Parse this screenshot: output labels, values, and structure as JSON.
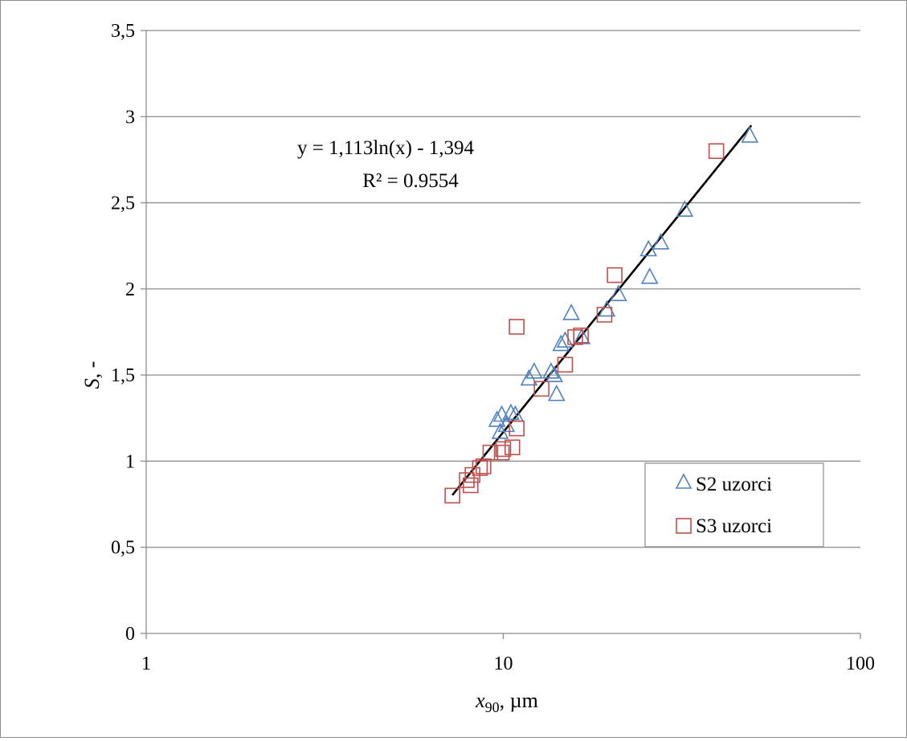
{
  "chart_data": {
    "type": "scatter",
    "title": "",
    "xlabel": {
      "main": "x",
      "sub": "90",
      "unit": ", µm"
    },
    "ylabel": {
      "main": "S",
      "unit": ", -"
    },
    "x_scale": "log",
    "xlim": [
      1,
      100
    ],
    "ylim": [
      0,
      3.5
    ],
    "x_ticks": [
      {
        "value": 1,
        "label": "1"
      },
      {
        "value": 10,
        "label": "10"
      },
      {
        "value": 100,
        "label": "100"
      }
    ],
    "y_ticks": [
      {
        "value": 0,
        "label": "0"
      },
      {
        "value": 0.5,
        "label": "0,5"
      },
      {
        "value": 1,
        "label": "1"
      },
      {
        "value": 1.5,
        "label": "1,5"
      },
      {
        "value": 2,
        "label": "2"
      },
      {
        "value": 2.5,
        "label": "2,5"
      },
      {
        "value": 3,
        "label": "3"
      },
      {
        "value": 3.5,
        "label": "3,5"
      }
    ],
    "grid": {
      "horizontal": true,
      "vertical": false
    },
    "legend_position": "right",
    "series": [
      {
        "name": "S2 uzorci",
        "marker": "triangle",
        "color": "#4f81bd",
        "points": [
          [
            9.6,
            1.24
          ],
          [
            9.9,
            1.27
          ],
          [
            9.8,
            1.17
          ],
          [
            10.2,
            1.21
          ],
          [
            10.5,
            1.28
          ],
          [
            10.8,
            1.27
          ],
          [
            11.8,
            1.48
          ],
          [
            12.2,
            1.52
          ],
          [
            13.6,
            1.52
          ],
          [
            13.9,
            1.5
          ],
          [
            14.1,
            1.39
          ],
          [
            14.5,
            1.68
          ],
          [
            14.9,
            1.7
          ],
          [
            15.5,
            1.86
          ],
          [
            16.6,
            1.72
          ],
          [
            19.5,
            1.88
          ],
          [
            21.0,
            1.97
          ],
          [
            25.5,
            2.23
          ],
          [
            25.7,
            2.07
          ],
          [
            27.6,
            2.27
          ],
          [
            32.2,
            2.46
          ],
          [
            49.0,
            2.89
          ]
        ]
      },
      {
        "name": "S3 uzorci",
        "marker": "square",
        "color": "#c0504d",
        "points": [
          [
            7.2,
            0.8
          ],
          [
            7.9,
            0.89
          ],
          [
            8.1,
            0.86
          ],
          [
            8.2,
            0.92
          ],
          [
            8.6,
            0.96
          ],
          [
            8.8,
            0.97
          ],
          [
            9.2,
            1.05
          ],
          [
            9.9,
            1.05
          ],
          [
            10.0,
            1.07
          ],
          [
            10.6,
            1.08
          ],
          [
            10.9,
            1.19
          ],
          [
            10.9,
            1.78
          ],
          [
            12.8,
            1.42
          ],
          [
            14.9,
            1.56
          ],
          [
            15.9,
            1.72
          ],
          [
            16.5,
            1.73
          ],
          [
            19.2,
            1.85
          ],
          [
            20.5,
            2.08
          ],
          [
            39.5,
            2.8
          ]
        ]
      }
    ],
    "trendline": {
      "type": "logarithmic",
      "a": 1.113,
      "b": -1.394,
      "x_range": [
        7.2,
        49.5
      ],
      "color": "#000000",
      "equation_text": "y = 1,113ln(x) - 1,394",
      "r2_text": "R² = 0.9554"
    }
  }
}
